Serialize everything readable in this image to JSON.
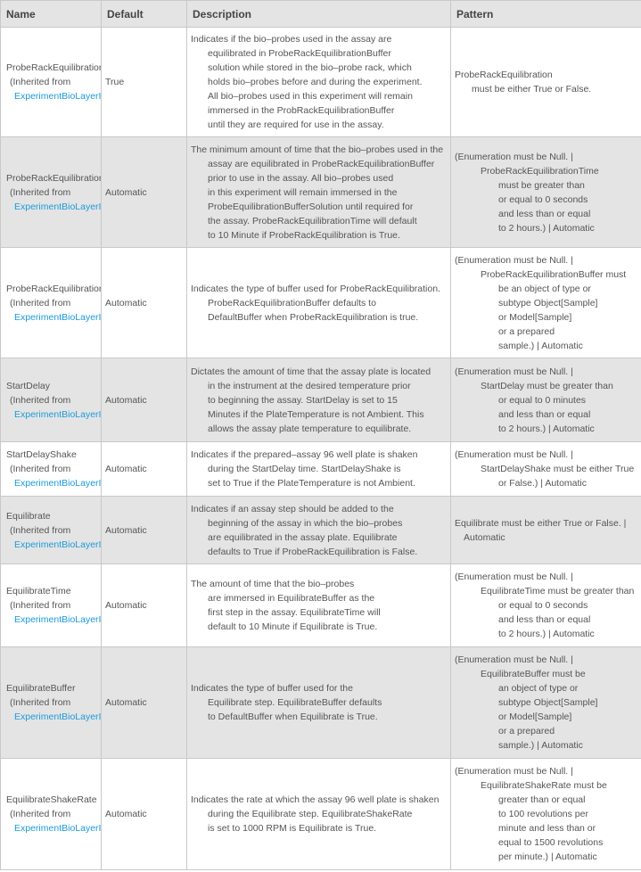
{
  "headers": [
    "Name",
    "Default",
    "Description",
    "Pattern"
  ],
  "inherited_label": "(Inherited from",
  "link_label": "ExperimentBioLayerInterferometry",
  "rows": [
    {
      "name": "ProbeRackEquilibration",
      "default": "True",
      "description": [
        "Indicates if the bio–probes used in the assay are",
        "equilibrated in ProbeRackEquilibrationBuffer",
        "solution while stored in the bio–probe rack, which",
        "holds bio–probes before and during the experiment.",
        "All bio–probes used in this experiment will remain",
        "immersed in the ProbRackEquilibrationBuffer",
        "until they are required for use in the assay."
      ],
      "pattern": [
        "ProbeRackEquilibration",
        "must be either True or False."
      ]
    },
    {
      "name": "ProbeRackEquilibrationTime",
      "default": "Automatic",
      "description": [
        "The minimum amount of time that the bio–probes used in the",
        "assay are equilibrated in ProbeRackEquilibrationBuffer",
        "prior to use in the assay. All bio–probes used",
        "in this experiment will remain immersed in the",
        "ProbeEquilibrationBufferSolution until required for",
        "the assay.  ProbeRackEquilibrationTime will default",
        "to 10 Minute if ProbeRackEquilibration is True."
      ],
      "pattern": [
        "(Enumeration must be Null. |",
        "ProbeRackEquilibrationTime",
        "must be greater than",
        "or equal to 0 seconds",
        "and less than or equal",
        "to 2 hours.) | Automatic"
      ]
    },
    {
      "name": "ProbeRackEquilibrationBuffer",
      "default": "Automatic",
      "description": [
        "Indicates the type of buffer used for ProbeRackEquilibration.",
        "ProbeRackEquilibrationBuffer defaults to",
        "DefaultBuffer when ProbeRackEquilibration is true."
      ],
      "pattern": [
        "(Enumeration must be Null. |",
        "ProbeRackEquilibrationBuffer must",
        "be an object of type or",
        "subtype Object[Sample]",
        "or Model[Sample]",
        "or a prepared",
        "sample.) | Automatic"
      ]
    },
    {
      "name": "StartDelay",
      "default": "Automatic",
      "description": [
        "Dictates the amount of time that the assay plate is located",
        "in the instrument at the desired temperature prior",
        "to beginning the assay.  StartDelay is set to 15",
        "Minutes if the PlateTemperature is not Ambient. This",
        "allows the assay plate temperature to equilibrate."
      ],
      "pattern": [
        "(Enumeration must be Null. |",
        "StartDelay must be greater than",
        "or equal to 0 minutes",
        "and less than or equal",
        "to 2 hours.) | Automatic"
      ]
    },
    {
      "name": "StartDelayShake",
      "default": "Automatic",
      "description": [
        "Indicates if the prepared–assay 96 well plate is shaken",
        "during the StartDelay time.  StartDelayShake is",
        "set to True if the PlateTemperature is not Ambient."
      ],
      "pattern": [
        "(Enumeration must be Null. |",
        "StartDelayShake must be either True",
        "or False.) | Automatic"
      ]
    },
    {
      "name": "Equilibrate",
      "default": "Automatic",
      "description": [
        "Indicates if an assay step should be added to the",
        "beginning of the assay in which the bio–probes",
        "are equilibrated in the assay plate.  Equilibrate",
        "defaults to True if ProbeRackEquilibration is False."
      ],
      "pattern": [
        "Equilibrate must be either True or False. |",
        "Automatic"
      ]
    },
    {
      "name": "EquilibrateTime",
      "default": "Automatic",
      "description": [
        "The amount of time that the bio–probes",
        "are immersed in EquilibrateBuffer as the",
        "first step in the assay.  EquilibrateTime will",
        "default to 10 Minute if Equilibrate is True."
      ],
      "pattern": [
        "(Enumeration must be Null. |",
        "EquilibrateTime must be greater than",
        "or equal to 0 seconds",
        "and less than or equal",
        "to 2 hours.) | Automatic"
      ]
    },
    {
      "name": "EquilibrateBuffer",
      "default": "Automatic",
      "description": [
        "Indicates the type of buffer used for the",
        "Equilibrate step.  EquilibrateBuffer defaults",
        "to DefaultBuffer when Equilibrate is True."
      ],
      "pattern": [
        "(Enumeration must be Null. |",
        "EquilibrateBuffer must be",
        "an object of type or",
        "subtype Object[Sample]",
        "or Model[Sample]",
        "or a prepared",
        "sample.) | Automatic"
      ]
    },
    {
      "name": "EquilibrateShakeRate",
      "default": "Automatic",
      "description": [
        "Indicates the rate at which the assay 96 well plate is shaken",
        "during the Equilibrate step.  EquilibrateShakeRate",
        "is set to 1000 RPM is Equilibrate is True."
      ],
      "pattern": [
        "(Enumeration must be Null. |",
        "EquilibrateShakeRate must be",
        "greater than or equal",
        "to 100 revolutions per",
        "minute and less than or",
        "equal to 1500 revolutions",
        "per minute.) | Automatic"
      ]
    }
  ]
}
